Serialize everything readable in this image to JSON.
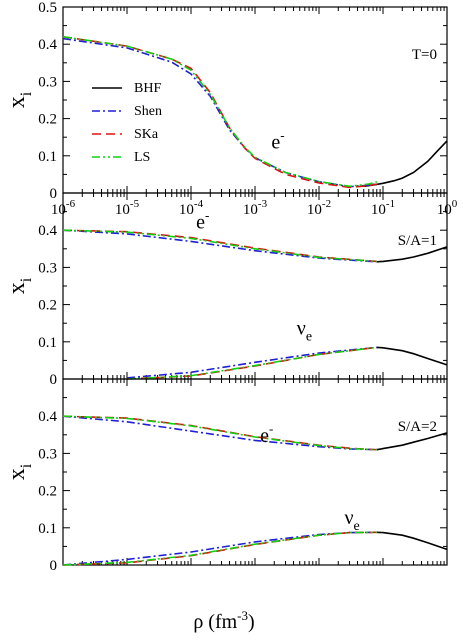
{
  "figure": {
    "xlabel": "ρ (fm",
    "xlabel_exp": "-3",
    "xlabel_close": ")",
    "x_tick_base": "10",
    "ylabel_main": "x",
    "ylabel_sub": "i"
  },
  "legend": [
    "BHF",
    "Shen",
    "SKa",
    "LS"
  ],
  "colors": {
    "BHF": "#000000",
    "Shen": "#1f1fd6",
    "SKa": "#e01010",
    "LS": "#10d010"
  },
  "chart_data": [
    {
      "type": "line",
      "panel_label": "T=0",
      "xscale": "log",
      "xlim": [
        1e-06,
        1
      ],
      "ylim": [
        0,
        0.5
      ],
      "yticks": [
        "0",
        "0.1",
        "0.2",
        "0.3",
        "0.4",
        "0.5"
      ],
      "xticks": [
        "-6",
        "-5",
        "-4",
        "-3",
        "-2",
        "-1",
        "0"
      ],
      "annotations": [
        {
          "text": "e",
          "sup": "-",
          "x": 0.0018,
          "y": 0.12
        }
      ],
      "series": [
        {
          "name": "BHF",
          "x": [
            0.05,
            0.08,
            0.1,
            0.15,
            0.2,
            0.3,
            0.5,
            0.7,
            1.0
          ],
          "y": [
            0.018,
            0.023,
            0.026,
            0.033,
            0.04,
            0.055,
            0.085,
            0.112,
            0.14
          ]
        },
        {
          "name": "Shen",
          "x": [
            1e-06,
            1e-05,
            5e-05,
            0.0001,
            0.0002,
            0.0004,
            0.0007,
            0.001,
            0.003,
            0.01,
            0.03,
            0.06,
            0.08
          ],
          "y": [
            0.415,
            0.39,
            0.352,
            0.32,
            0.26,
            0.17,
            0.12,
            0.095,
            0.055,
            0.03,
            0.017,
            0.021,
            0.025
          ]
        },
        {
          "name": "SKa",
          "x": [
            1e-06,
            1e-05,
            5e-05,
            0.0001,
            0.0002,
            0.0004,
            0.0007,
            0.001,
            0.003,
            0.01,
            0.03,
            0.06,
            0.08
          ],
          "y": [
            0.42,
            0.395,
            0.36,
            0.335,
            0.27,
            0.175,
            0.12,
            0.093,
            0.05,
            0.027,
            0.015,
            0.02,
            0.024
          ]
        },
        {
          "name": "LS",
          "x": [
            1e-06,
            1e-05,
            5e-05,
            0.0001,
            0.0002,
            0.0004,
            0.0007,
            0.001,
            0.003,
            0.01,
            0.03,
            0.06,
            0.08
          ],
          "y": [
            0.42,
            0.395,
            0.36,
            0.33,
            0.265,
            0.175,
            0.122,
            0.096,
            0.055,
            0.031,
            0.018,
            0.024,
            0.03
          ]
        }
      ]
    },
    {
      "type": "line",
      "panel_label": "S/A=1",
      "xscale": "log",
      "xlim": [
        1e-06,
        1
      ],
      "ylim": [
        0,
        0.5
      ],
      "yticks": [
        "0",
        "0.1",
        "0.2",
        "0.3",
        "0.4"
      ],
      "annotations": [
        {
          "text": "e",
          "sup": "-",
          "x": 0.00012,
          "y": 0.405
        },
        {
          "text": "ν",
          "sub": "e",
          "x": 0.0045,
          "y": 0.12
        }
      ],
      "series": [
        {
          "name": "BHF",
          "x": [
            0.08,
            0.1,
            0.2,
            0.3,
            0.5,
            1.0
          ],
          "y": [
            0.315,
            0.316,
            0.322,
            0.328,
            0.338,
            0.355
          ]
        },
        {
          "name": "BHF",
          "x": [
            0.08,
            0.1,
            0.2,
            0.3,
            0.5,
            1.0
          ],
          "y": [
            0.085,
            0.084,
            0.076,
            0.068,
            0.055,
            0.038
          ]
        },
        {
          "name": "Shen",
          "x": [
            1e-06,
            1e-05,
            0.0001,
            0.001,
            0.01,
            0.08
          ],
          "y": [
            0.4,
            0.39,
            0.37,
            0.345,
            0.325,
            0.315
          ]
        },
        {
          "name": "SKa",
          "x": [
            1e-06,
            1e-05,
            0.0001,
            0.001,
            0.01,
            0.08
          ],
          "y": [
            0.4,
            0.396,
            0.38,
            0.352,
            0.328,
            0.316
          ]
        },
        {
          "name": "LS",
          "x": [
            1e-06,
            1e-05,
            0.0001,
            0.001,
            0.01,
            0.08
          ],
          "y": [
            0.4,
            0.395,
            0.378,
            0.35,
            0.327,
            0.316
          ]
        },
        {
          "name": "Shen",
          "x": [
            1e-05,
            0.0001,
            0.001,
            0.01,
            0.08
          ],
          "y": [
            0.003,
            0.018,
            0.045,
            0.07,
            0.085
          ]
        },
        {
          "name": "SKa",
          "x": [
            1e-05,
            0.0001,
            0.001,
            0.01,
            0.08
          ],
          "y": [
            0.0,
            0.008,
            0.035,
            0.066,
            0.085
          ]
        },
        {
          "name": "LS",
          "x": [
            1e-05,
            0.0001,
            0.001,
            0.01,
            0.08
          ],
          "y": [
            0.0,
            0.009,
            0.036,
            0.066,
            0.085
          ]
        }
      ]
    },
    {
      "type": "line",
      "panel_label": "S/A=2",
      "xscale": "log",
      "xlim": [
        1e-06,
        1
      ],
      "ylim": [
        0,
        0.5
      ],
      "yticks": [
        "0",
        "0.1",
        "0.2",
        "0.3",
        "0.4"
      ],
      "annotations": [
        {
          "text": "e",
          "sup": "-",
          "x": 0.0012,
          "y": 0.33
        },
        {
          "text": "ν",
          "sub": "e",
          "x": 0.025,
          "y": 0.11
        }
      ],
      "series": [
        {
          "name": "BHF",
          "x": [
            0.08,
            0.1,
            0.2,
            0.3,
            0.5,
            1.0
          ],
          "y": [
            0.31,
            0.313,
            0.322,
            0.33,
            0.34,
            0.355
          ]
        },
        {
          "name": "BHF",
          "x": [
            0.08,
            0.1,
            0.2,
            0.3,
            0.5,
            1.0
          ],
          "y": [
            0.088,
            0.087,
            0.08,
            0.072,
            0.06,
            0.042
          ]
        },
        {
          "name": "Shen",
          "x": [
            1e-06,
            1e-05,
            0.0001,
            0.001,
            0.01,
            0.03,
            0.08
          ],
          "y": [
            0.4,
            0.385,
            0.36,
            0.335,
            0.318,
            0.312,
            0.31
          ]
        },
        {
          "name": "SKa",
          "x": [
            1e-06,
            1e-05,
            0.0001,
            0.001,
            0.01,
            0.03,
            0.08
          ],
          "y": [
            0.4,
            0.395,
            0.375,
            0.345,
            0.322,
            0.314,
            0.31
          ]
        },
        {
          "name": "LS",
          "x": [
            1e-06,
            1e-05,
            0.0001,
            0.001,
            0.01,
            0.03,
            0.08
          ],
          "y": [
            0.4,
            0.394,
            0.374,
            0.344,
            0.321,
            0.313,
            0.31
          ]
        },
        {
          "name": "Shen",
          "x": [
            1e-06,
            1e-05,
            0.0001,
            0.001,
            0.01,
            0.03,
            0.08
          ],
          "y": [
            0.0,
            0.015,
            0.035,
            0.062,
            0.082,
            0.087,
            0.088
          ]
        },
        {
          "name": "SKa",
          "x": [
            1e-06,
            1e-05,
            0.0001,
            0.001,
            0.01,
            0.03,
            0.08
          ],
          "y": [
            0.0,
            0.006,
            0.025,
            0.055,
            0.08,
            0.087,
            0.088
          ]
        },
        {
          "name": "LS",
          "x": [
            1e-06,
            1e-05,
            0.0001,
            0.001,
            0.01,
            0.03,
            0.08
          ],
          "y": [
            0.0,
            0.007,
            0.026,
            0.056,
            0.08,
            0.087,
            0.088
          ]
        }
      ]
    }
  ]
}
